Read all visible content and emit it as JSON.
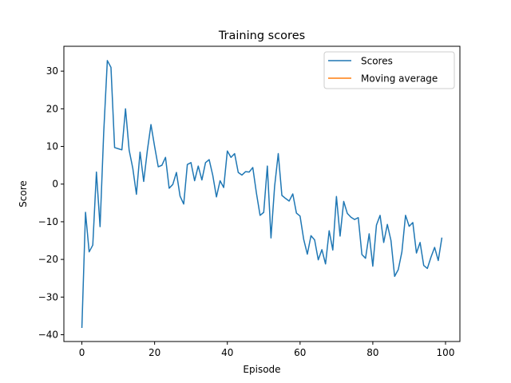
{
  "chart_data": {
    "type": "line",
    "title": "Training scores",
    "xlabel": "Episode",
    "ylabel": "Score",
    "xlim": [
      -4.95,
      103.95
    ],
    "ylim": [
      -41.8,
      36.6
    ],
    "xticks": [
      0,
      20,
      40,
      60,
      80,
      100
    ],
    "yticks": [
      -40,
      -30,
      -20,
      -10,
      0,
      10,
      20,
      30
    ],
    "grid": false,
    "legend": "top-right",
    "series": [
      {
        "name": "Scores",
        "color": "#1f77b4",
        "x": [
          0,
          1,
          2,
          3,
          4,
          5,
          6,
          7,
          8,
          9,
          10,
          11,
          12,
          13,
          14,
          15,
          16,
          17,
          18,
          19,
          20,
          21,
          22,
          23,
          24,
          25,
          26,
          27,
          28,
          29,
          30,
          31,
          32,
          33,
          34,
          35,
          36,
          37,
          38,
          39,
          40,
          41,
          42,
          43,
          44,
          45,
          46,
          47,
          48,
          49,
          50,
          51,
          52,
          53,
          54,
          55,
          56,
          57,
          58,
          59,
          60,
          61,
          62,
          63,
          64,
          65,
          66,
          67,
          68,
          69,
          70,
          71,
          72,
          73,
          74,
          75,
          76,
          77,
          78,
          79,
          80,
          81,
          82,
          83,
          84,
          85,
          86,
          87,
          88,
          89,
          90,
          91,
          92,
          93,
          94,
          95,
          96,
          97,
          98,
          99
        ],
        "values": [
          -38.2,
          -7.5,
          -18,
          -16.2,
          3.2,
          -11.3,
          13.6,
          32.8,
          31,
          9.7,
          9.4,
          9.1,
          20,
          9,
          4.2,
          -2.7,
          8.5,
          0.7,
          8.9,
          15.8,
          10,
          4.6,
          5,
          7.1,
          -1.1,
          -0.1,
          3.1,
          -3.2,
          -5.3,
          5.2,
          5.7,
          0.9,
          4.8,
          1.1,
          5.7,
          6.5,
          2.3,
          -3.4,
          0.9,
          -0.9,
          8.8,
          7.1,
          8.1,
          3.1,
          2.4,
          3.3,
          3.2,
          4.4,
          -2.4,
          -8.3,
          -7.5,
          4.8,
          -14.3,
          -0.6,
          8.1,
          -3,
          -3.8,
          -4.5,
          -2.6,
          -7.7,
          -8.5,
          -14.7,
          -18.6,
          -13.7,
          -14.8,
          -20.1,
          -17.4,
          -21.2,
          -12.4,
          -17.5,
          -3.3,
          -13.8,
          -4.6,
          -7.8,
          -8.8,
          -9.4,
          -8.9,
          -18.7,
          -19.7,
          -13.2,
          -21.8,
          -10.9,
          -8.3,
          -15.5,
          -10.7,
          -15,
          -24.5,
          -22.7,
          -18,
          -8.3,
          -11.2,
          -10.2,
          -18.3,
          -15.5,
          -21.6,
          -22.4,
          -19.4,
          -16.8,
          -20.3,
          -14.2
        ]
      },
      {
        "name": "Moving average",
        "color": "#ff7f0e",
        "x": [],
        "values": []
      }
    ]
  }
}
